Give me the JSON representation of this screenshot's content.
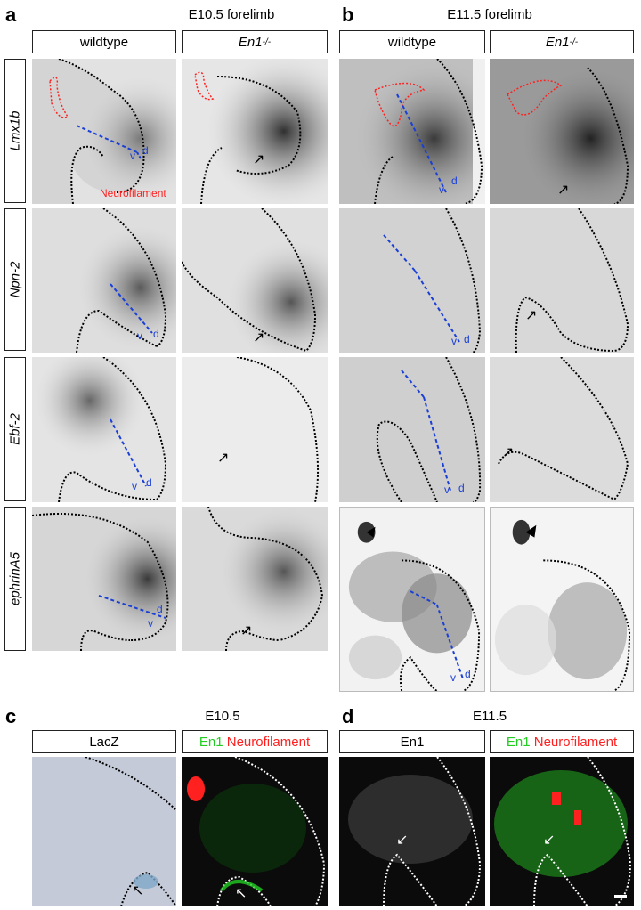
{
  "figure": {
    "panel_a": {
      "letter": "a",
      "title": "E10.5 forelimb",
      "col1": "wildtype",
      "col2": "En1-/-"
    },
    "panel_b": {
      "letter": "b",
      "title": "E11.5 forelimb",
      "col1": "wildtype",
      "col2": "En1-/-"
    },
    "rows": [
      "Lmx1b",
      "Npn-2",
      "Ebf-2",
      "ephrinA5"
    ],
    "panel_c": {
      "letter": "c",
      "title": "E10.5",
      "col1": "LacZ",
      "col2_green": "En1",
      "col2_red": "Neurofilament"
    },
    "panel_d": {
      "letter": "d",
      "title": "E11.5",
      "col1": "En1",
      "col2_green": "En1",
      "col2_red": "Neurofilament"
    },
    "overlay_neurofilament": "Neurofilament",
    "axis_v": "v",
    "axis_d": "d"
  },
  "colors": {
    "dashed_axis": "#1a3fd6",
    "neurofilament": "#ff2020",
    "en1": "#22cc22",
    "outline": "#000000"
  }
}
